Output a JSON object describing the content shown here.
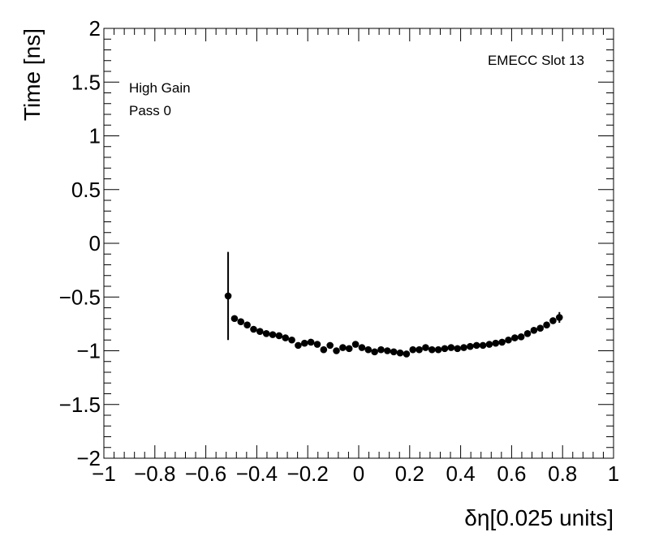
{
  "chart_data": {
    "type": "scatter",
    "title": "",
    "xlabel": "δη[0.025 units]",
    "ylabel": "Time [ns]",
    "xlim": [
      -1,
      1
    ],
    "ylim": [
      -2,
      2
    ],
    "x_ticks": [
      "−1",
      "−0.8",
      "−0.6",
      "−0.4",
      "−0.2",
      "0",
      "0.2",
      "0.4",
      "0.6",
      "0.8",
      "1"
    ],
    "y_ticks": [
      "−2",
      "−1.5",
      "−1",
      "−0.5",
      "0",
      "0.5",
      "1",
      "1.5",
      "2"
    ],
    "annotations": {
      "slot": "EMECC Slot 13",
      "gain": "High Gain",
      "pass": "Pass 0"
    },
    "grid": false,
    "series": [
      {
        "marker": "circle",
        "color": "#000000",
        "points": [
          {
            "x": -0.5125,
            "y": -0.49,
            "err": 0.41
          },
          {
            "x": -0.4875,
            "y": -0.7,
            "err": 0.01
          },
          {
            "x": -0.4625,
            "y": -0.73,
            "err": 0.01
          },
          {
            "x": -0.4375,
            "y": -0.76,
            "err": 0.01
          },
          {
            "x": -0.4125,
            "y": -0.8,
            "err": 0.01
          },
          {
            "x": -0.3875,
            "y": -0.82,
            "err": 0.01
          },
          {
            "x": -0.3625,
            "y": -0.84,
            "err": 0.01
          },
          {
            "x": -0.3375,
            "y": -0.85,
            "err": 0.01
          },
          {
            "x": -0.3125,
            "y": -0.86,
            "err": 0.01
          },
          {
            "x": -0.2875,
            "y": -0.88,
            "err": 0.01
          },
          {
            "x": -0.2625,
            "y": -0.9,
            "err": 0.01
          },
          {
            "x": -0.2375,
            "y": -0.95,
            "err": 0.01
          },
          {
            "x": -0.2125,
            "y": -0.93,
            "err": 0.01
          },
          {
            "x": -0.1875,
            "y": -0.92,
            "err": 0.01
          },
          {
            "x": -0.1625,
            "y": -0.94,
            "err": 0.01
          },
          {
            "x": -0.1375,
            "y": -0.99,
            "err": 0.01
          },
          {
            "x": -0.1125,
            "y": -0.95,
            "err": 0.01
          },
          {
            "x": -0.0875,
            "y": -1.0,
            "err": 0.01
          },
          {
            "x": -0.0625,
            "y": -0.97,
            "err": 0.01
          },
          {
            "x": -0.0375,
            "y": -0.98,
            "err": 0.01
          },
          {
            "x": -0.0125,
            "y": -0.94,
            "err": 0.01
          },
          {
            "x": 0.0125,
            "y": -0.97,
            "err": 0.01
          },
          {
            "x": 0.0375,
            "y": -0.99,
            "err": 0.01
          },
          {
            "x": 0.0625,
            "y": -1.01,
            "err": 0.01
          },
          {
            "x": 0.0875,
            "y": -0.99,
            "err": 0.01
          },
          {
            "x": 0.1125,
            "y": -1.0,
            "err": 0.01
          },
          {
            "x": 0.1375,
            "y": -1.01,
            "err": 0.01
          },
          {
            "x": 0.1625,
            "y": -1.02,
            "err": 0.01
          },
          {
            "x": 0.1875,
            "y": -1.03,
            "err": 0.01
          },
          {
            "x": 0.2125,
            "y": -0.99,
            "err": 0.01
          },
          {
            "x": 0.2375,
            "y": -0.99,
            "err": 0.01
          },
          {
            "x": 0.2625,
            "y": -0.97,
            "err": 0.01
          },
          {
            "x": 0.2875,
            "y": -0.99,
            "err": 0.01
          },
          {
            "x": 0.3125,
            "y": -0.99,
            "err": 0.01
          },
          {
            "x": 0.3375,
            "y": -0.98,
            "err": 0.01
          },
          {
            "x": 0.3625,
            "y": -0.97,
            "err": 0.01
          },
          {
            "x": 0.3875,
            "y": -0.98,
            "err": 0.01
          },
          {
            "x": 0.4125,
            "y": -0.97,
            "err": 0.01
          },
          {
            "x": 0.4375,
            "y": -0.96,
            "err": 0.01
          },
          {
            "x": 0.4625,
            "y": -0.95,
            "err": 0.01
          },
          {
            "x": 0.4875,
            "y": -0.95,
            "err": 0.01
          },
          {
            "x": 0.5125,
            "y": -0.94,
            "err": 0.01
          },
          {
            "x": 0.5375,
            "y": -0.93,
            "err": 0.01
          },
          {
            "x": 0.5625,
            "y": -0.92,
            "err": 0.01
          },
          {
            "x": 0.5875,
            "y": -0.9,
            "err": 0.01
          },
          {
            "x": 0.6125,
            "y": -0.88,
            "err": 0.01
          },
          {
            "x": 0.6375,
            "y": -0.87,
            "err": 0.01
          },
          {
            "x": 0.6625,
            "y": -0.84,
            "err": 0.01
          },
          {
            "x": 0.6875,
            "y": -0.81,
            "err": 0.01
          },
          {
            "x": 0.7125,
            "y": -0.79,
            "err": 0.01
          },
          {
            "x": 0.7375,
            "y": -0.76,
            "err": 0.01
          },
          {
            "x": 0.7625,
            "y": -0.72,
            "err": 0.01
          },
          {
            "x": 0.7875,
            "y": -0.69,
            "err": 0.05
          }
        ]
      }
    ]
  }
}
